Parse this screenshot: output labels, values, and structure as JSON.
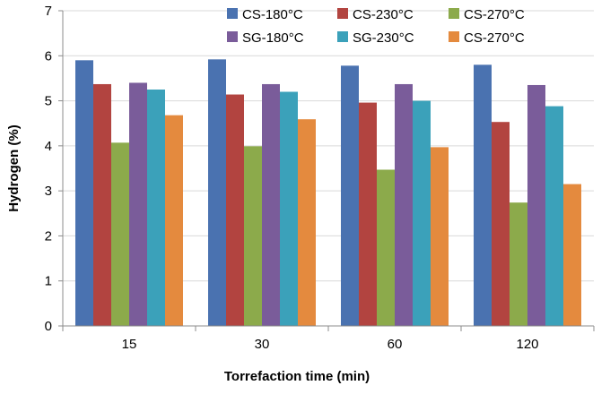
{
  "chart_data": {
    "type": "bar",
    "title": "",
    "xlabel": "Torrefaction time (min)",
    "ylabel": "Hydrogen (%)",
    "ylim": [
      0,
      7
    ],
    "yticks": [
      "0",
      "1",
      "2",
      "3",
      "4",
      "5",
      "6",
      "7"
    ],
    "categories": [
      "15",
      "30",
      "60",
      "120"
    ],
    "legend_position": "top-right",
    "series": [
      {
        "name": "CS-180°C",
        "color": "#4a72b0",
        "values": [
          5.9,
          5.92,
          5.78,
          5.8
        ]
      },
      {
        "name": "CS-230°C",
        "color": "#b24440",
        "values": [
          5.37,
          5.14,
          4.96,
          4.53
        ]
      },
      {
        "name": "CS-270°C",
        "color": "#8caa4b",
        "values": [
          4.07,
          3.99,
          3.47,
          2.74
        ]
      },
      {
        "name": "SG-180°C",
        "color": "#7a5c9a",
        "values": [
          5.4,
          5.37,
          5.37,
          5.35
        ]
      },
      {
        "name": "SG-230°C",
        "color": "#3ba1ba",
        "values": [
          5.25,
          5.2,
          5.0,
          4.88
        ]
      },
      {
        "name": "CS-270°C",
        "color": "#e48a3e",
        "values": [
          4.68,
          4.59,
          3.97,
          3.15
        ]
      }
    ]
  }
}
